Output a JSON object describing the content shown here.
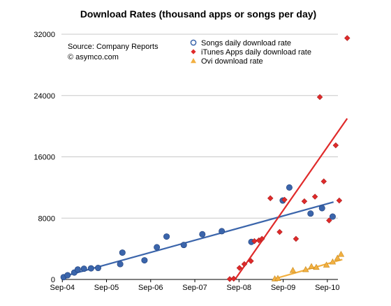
{
  "chart_data": {
    "type": "scatter",
    "title": "Download Rates (thousand apps or songs per day)",
    "annotations": [
      "Source: Company Reports",
      "© asymco.com"
    ],
    "xlabel": "",
    "ylabel": "",
    "x_ticks": [
      "Sep-04",
      "Sep-05",
      "Sep-06",
      "Sep-07",
      "Sep-08",
      "Sep-09",
      "Sep-10"
    ],
    "y_ticks": [
      0,
      8000,
      16000,
      24000,
      32000
    ],
    "y_tick_labels": [
      "0",
      "8000",
      "16000",
      "24000",
      "32000"
    ],
    "xlim": [
      2004.68,
      2010.94
    ],
    "ylim": [
      0,
      32000
    ],
    "grid": "horizontal",
    "legend_position": "top-right",
    "series": [
      {
        "name": "Songs daily download rate",
        "marker": "circle",
        "color": "#3B65AB",
        "points": [
          [
            2004.73,
            300
          ],
          [
            2004.82,
            550
          ],
          [
            2004.97,
            900
          ],
          [
            2005.05,
            1300
          ],
          [
            2005.19,
            1400
          ],
          [
            2005.35,
            1450
          ],
          [
            2005.51,
            1500
          ],
          [
            2006.01,
            2000
          ],
          [
            2006.06,
            3500
          ],
          [
            2006.56,
            2500
          ],
          [
            2006.84,
            4200
          ],
          [
            2007.06,
            5600
          ],
          [
            2007.45,
            4500
          ],
          [
            2007.87,
            5900
          ],
          [
            2008.31,
            6300
          ],
          [
            2008.98,
            4900
          ],
          [
            2009.69,
            10300
          ],
          [
            2009.84,
            12000
          ],
          [
            2010.32,
            8600
          ],
          [
            2010.58,
            9300
          ],
          [
            2010.82,
            8200
          ]
        ],
        "trendline": [
          [
            2004.73,
            400
          ],
          [
            2010.84,
            10100
          ]
        ]
      },
      {
        "name": "iTunes Apps daily download rate",
        "marker": "diamond",
        "color": "#E02A2A",
        "points": [
          [
            2008.49,
            50
          ],
          [
            2008.58,
            100
          ],
          [
            2008.71,
            1500
          ],
          [
            2008.82,
            2000
          ],
          [
            2008.97,
            2400
          ],
          [
            2009.05,
            5000
          ],
          [
            2009.15,
            5100
          ],
          [
            2009.22,
            5300
          ],
          [
            2009.41,
            10600
          ],
          [
            2009.62,
            6200
          ],
          [
            2009.73,
            10400
          ],
          [
            2009.99,
            5300
          ],
          [
            2010.18,
            10200
          ],
          [
            2010.42,
            10800
          ],
          [
            2010.53,
            23800
          ],
          [
            2010.62,
            12800
          ],
          [
            2010.74,
            7700
          ],
          [
            2010.89,
            17500
          ],
          [
            2010.97,
            10300
          ],
          [
            2011.15,
            31500
          ]
        ],
        "trendline": [
          [
            2008.61,
            0
          ],
          [
            2011.15,
            21000
          ]
        ]
      },
      {
        "name": "Ovi download rate",
        "marker": "triangle",
        "color": "#F2B041",
        "points": [
          [
            2009.51,
            100
          ],
          [
            2009.58,
            150
          ],
          [
            2009.92,
            1200
          ],
          [
            2010.21,
            1300
          ],
          [
            2010.34,
            1700
          ],
          [
            2010.45,
            1600
          ],
          [
            2010.68,
            1900
          ],
          [
            2010.82,
            2300
          ],
          [
            2010.93,
            2800
          ],
          [
            2011.01,
            3300
          ]
        ],
        "trendline": [
          [
            2009.51,
            100
          ],
          [
            2011.04,
            2600
          ]
        ]
      }
    ]
  }
}
